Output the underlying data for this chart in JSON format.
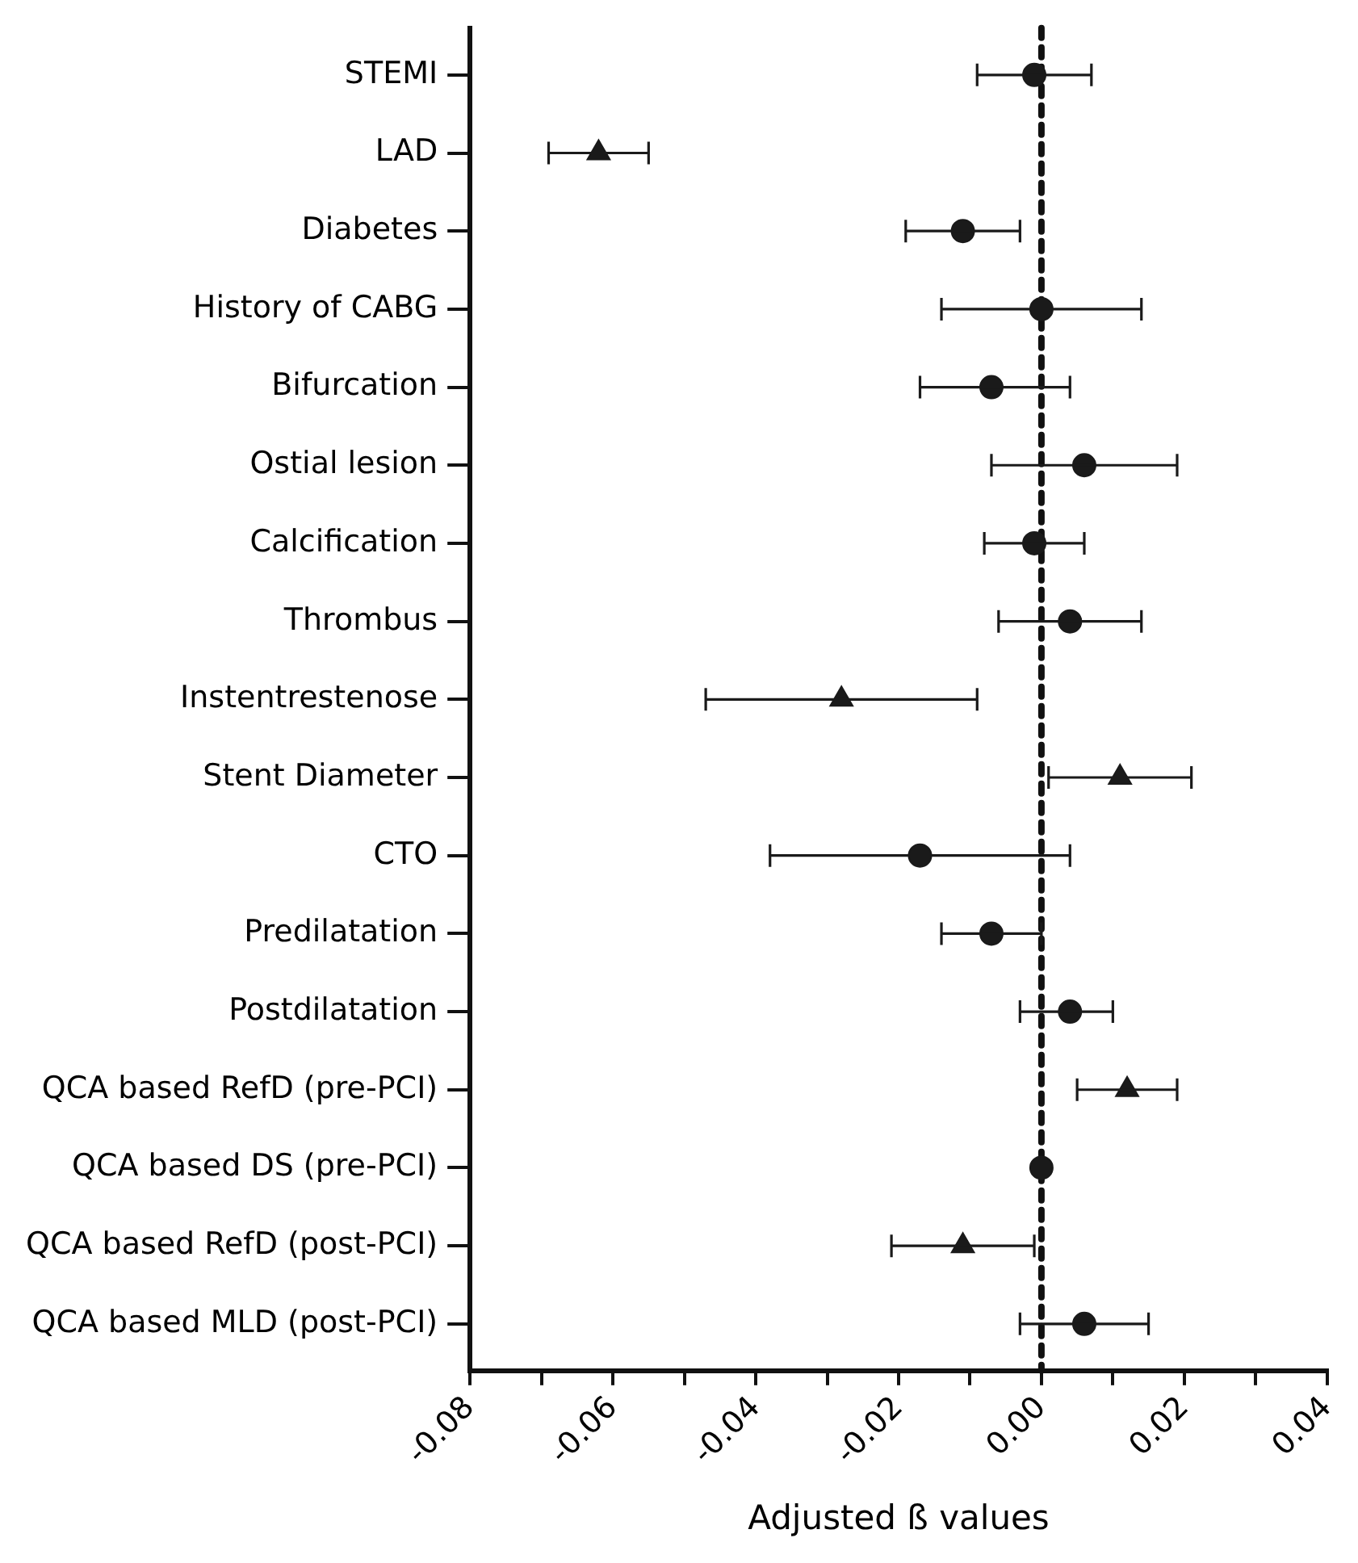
{
  "chart_data": {
    "type": "scatter",
    "orientation": "horizontal",
    "xlabel": "Adjusted ß values",
    "categories": [
      "STEMI",
      "LAD",
      "Diabetes",
      "History of CABG",
      "Bifurcation",
      "Ostial lesion",
      "Calcification",
      "Thrombus",
      "Instentrestenose",
      "Stent Diameter",
      "CTO",
      "Predilatation",
      "Postdilatation",
      "QCA based RefD (pre-PCI)",
      "QCA based DS (pre-PCI)",
      "QCA based RefD (post-PCI)",
      "QCA based MLD (post-PCI)"
    ],
    "series": [
      {
        "color": "#1a1a1a",
        "marker": "circle",
        "values": [
          -0.001,
          null,
          -0.011,
          0.0,
          -0.007,
          0.006,
          -0.001,
          0.004,
          null,
          null,
          -0.017,
          -0.007,
          0.004,
          null,
          0.0,
          null,
          0.006
        ],
        "errors": [
          [
            -0.009,
            0.007
          ],
          null,
          [
            -0.019,
            -0.003
          ],
          [
            -0.014,
            0.014
          ],
          [
            -0.017,
            0.004
          ],
          [
            -0.007,
            0.019
          ],
          [
            -0.008,
            0.006
          ],
          [
            -0.006,
            0.014
          ],
          null,
          null,
          [
            -0.038,
            0.004
          ],
          [
            -0.014,
            0.0
          ],
          [
            -0.003,
            0.01
          ],
          null,
          null,
          null,
          [
            -0.003,
            0.015
          ]
        ]
      },
      {
        "color": "#1a1a1a",
        "marker": "triangle",
        "values": [
          null,
          -0.062,
          null,
          null,
          null,
          null,
          null,
          null,
          -0.028,
          0.011,
          null,
          null,
          null,
          0.012,
          null,
          -0.011,
          null
        ],
        "errors": [
          null,
          [
            -0.069,
            -0.055
          ],
          null,
          null,
          null,
          null,
          null,
          null,
          [
            -0.047,
            -0.009
          ],
          [
            0.001,
            0.021
          ],
          null,
          null,
          null,
          [
            0.005,
            0.019
          ],
          null,
          [
            -0.021,
            -0.001
          ],
          null
        ]
      }
    ],
    "xlim": [
      -0.08,
      0.04
    ],
    "xticks": [
      -0.08,
      {
        "value": -0.07,
        "label": null
      },
      -0.06,
      {
        "value": -0.05,
        "label": null
      },
      -0.04,
      {
        "value": -0.03,
        "label": null
      },
      -0.02,
      {
        "value": -0.01,
        "label": null
      },
      "0.00",
      {
        "value": 0.01,
        "label": null
      },
      0.02,
      {
        "value": 0.03,
        "label": null
      },
      0.04
    ],
    "ref_lines": [
      {
        "axis": "x",
        "value": 0,
        "color": "#111111",
        "line_style": "dotted"
      }
    ],
    "grid": false,
    "legend": false
  }
}
